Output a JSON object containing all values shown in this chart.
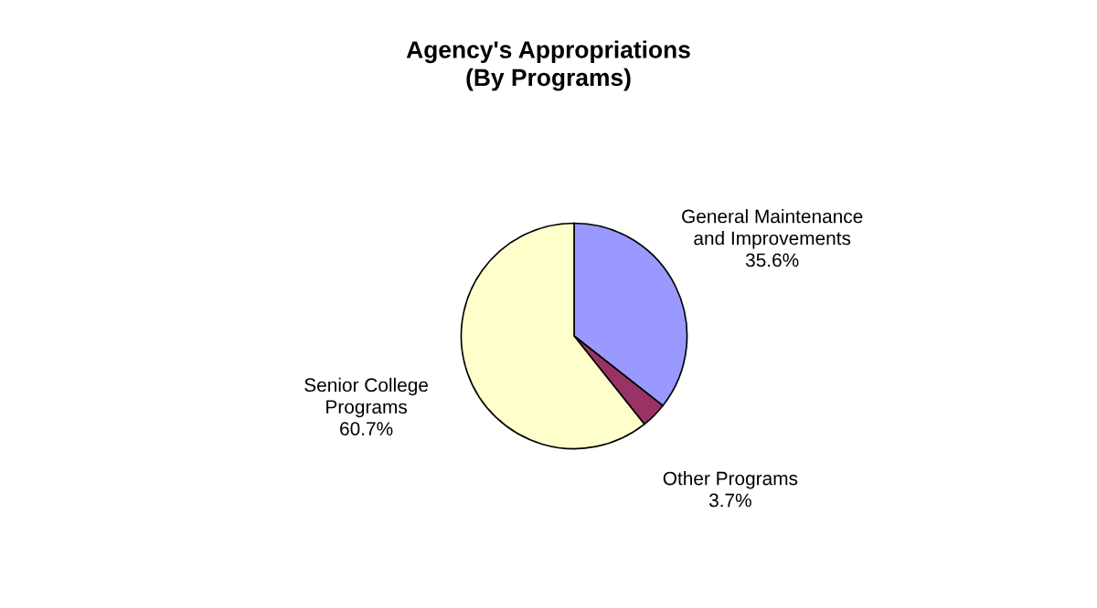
{
  "chart_data": {
    "type": "pie",
    "title": "Agency's Appropriations\n(By Programs)",
    "categories": [
      "General Maintenance\nand Improvements",
      "Other Programs",
      "Senior College\nPrograms"
    ],
    "values": [
      35.6,
      3.7,
      60.7
    ],
    "colors": [
      "#9999ff",
      "#993366",
      "#ffffcc"
    ],
    "value_labels": [
      "35.6%",
      "3.7%",
      "60.7%"
    ]
  }
}
